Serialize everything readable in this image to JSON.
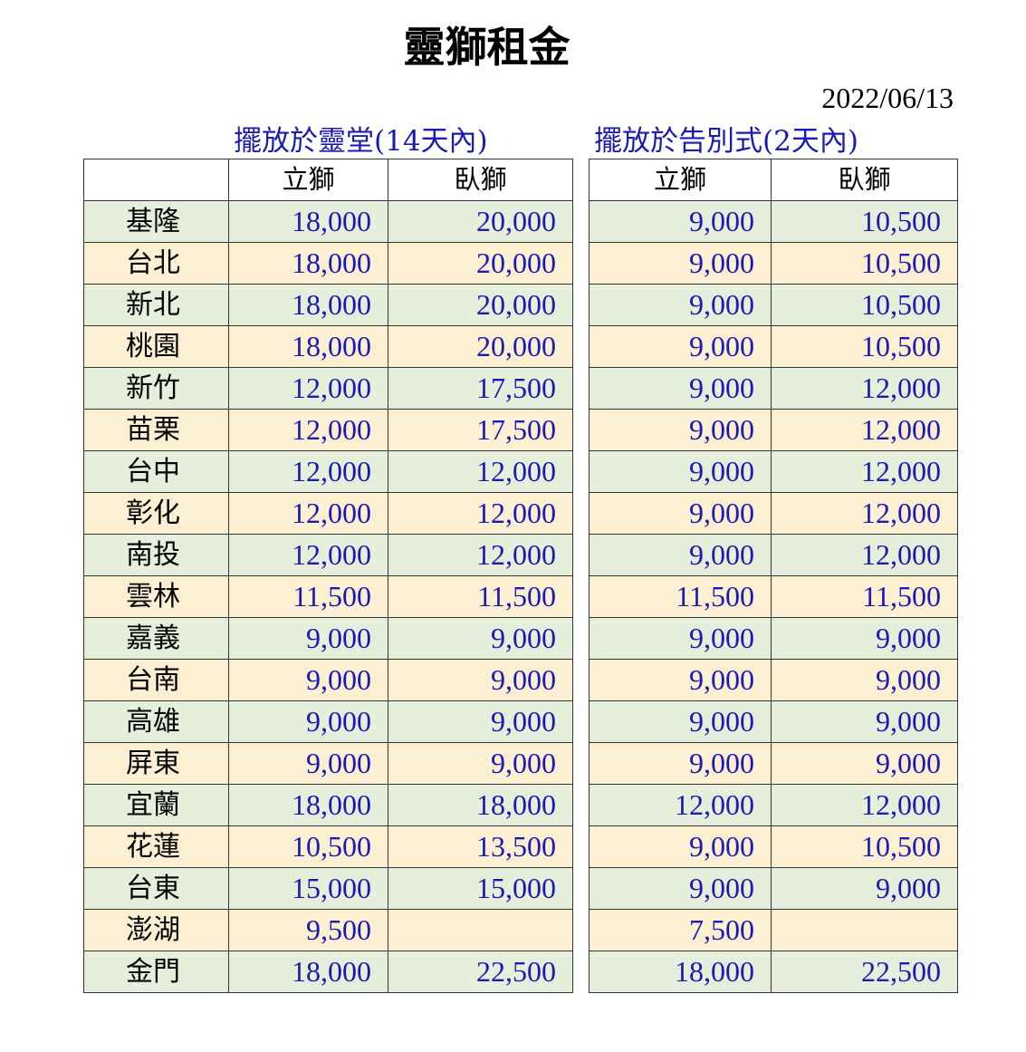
{
  "title": "靈獅租金",
  "date": "2022/06/13",
  "section_a": "擺放於靈堂(14天內)",
  "section_b": "擺放於告別式(2天內)",
  "headers": {
    "city": "",
    "standing": "立獅",
    "lying": "臥獅"
  },
  "rows": [
    {
      "city": "基隆",
      "a_stand": "18,000",
      "a_lie": "20,000",
      "b_stand": "9,000",
      "b_lie": "10,500"
    },
    {
      "city": "台北",
      "a_stand": "18,000",
      "a_lie": "20,000",
      "b_stand": "9,000",
      "b_lie": "10,500"
    },
    {
      "city": "新北",
      "a_stand": "18,000",
      "a_lie": "20,000",
      "b_stand": "9,000",
      "b_lie": "10,500"
    },
    {
      "city": "桃園",
      "a_stand": "18,000",
      "a_lie": "20,000",
      "b_stand": "9,000",
      "b_lie": "10,500"
    },
    {
      "city": "新竹",
      "a_stand": "12,000",
      "a_lie": "17,500",
      "b_stand": "9,000",
      "b_lie": "12,000"
    },
    {
      "city": "苗栗",
      "a_stand": "12,000",
      "a_lie": "17,500",
      "b_stand": "9,000",
      "b_lie": "12,000"
    },
    {
      "city": "台中",
      "a_stand": "12,000",
      "a_lie": "12,000",
      "b_stand": "9,000",
      "b_lie": "12,000"
    },
    {
      "city": "彰化",
      "a_stand": "12,000",
      "a_lie": "12,000",
      "b_stand": "9,000",
      "b_lie": "12,000"
    },
    {
      "city": "南投",
      "a_stand": "12,000",
      "a_lie": "12,000",
      "b_stand": "9,000",
      "b_lie": "12,000"
    },
    {
      "city": "雲林",
      "a_stand": "11,500",
      "a_lie": "11,500",
      "b_stand": "11,500",
      "b_lie": "11,500"
    },
    {
      "city": "嘉義",
      "a_stand": "9,000",
      "a_lie": "9,000",
      "b_stand": "9,000",
      "b_lie": "9,000"
    },
    {
      "city": "台南",
      "a_stand": "9,000",
      "a_lie": "9,000",
      "b_stand": "9,000",
      "b_lie": "9,000"
    },
    {
      "city": "高雄",
      "a_stand": "9,000",
      "a_lie": "9,000",
      "b_stand": "9,000",
      "b_lie": "9,000"
    },
    {
      "city": "屏東",
      "a_stand": "9,000",
      "a_lie": "9,000",
      "b_stand": "9,000",
      "b_lie": "9,000"
    },
    {
      "city": "宜蘭",
      "a_stand": "18,000",
      "a_lie": "18,000",
      "b_stand": "12,000",
      "b_lie": "12,000"
    },
    {
      "city": "花蓮",
      "a_stand": "10,500",
      "a_lie": "13,500",
      "b_stand": "9,000",
      "b_lie": "10,500"
    },
    {
      "city": "台東",
      "a_stand": "15,000",
      "a_lie": "15,000",
      "b_stand": "9,000",
      "b_lie": "9,000"
    },
    {
      "city": "澎湖",
      "a_stand": "9,500",
      "a_lie": "",
      "b_stand": "7,500",
      "b_lie": ""
    },
    {
      "city": "金門",
      "a_stand": "18,000",
      "a_lie": "22,500",
      "b_stand": "18,000",
      "b_lie": "22,500"
    }
  ],
  "colors": {
    "row_green": "#e6efdc",
    "row_tan": "#fdefd2",
    "value_blue": "#1a1ab4"
  }
}
